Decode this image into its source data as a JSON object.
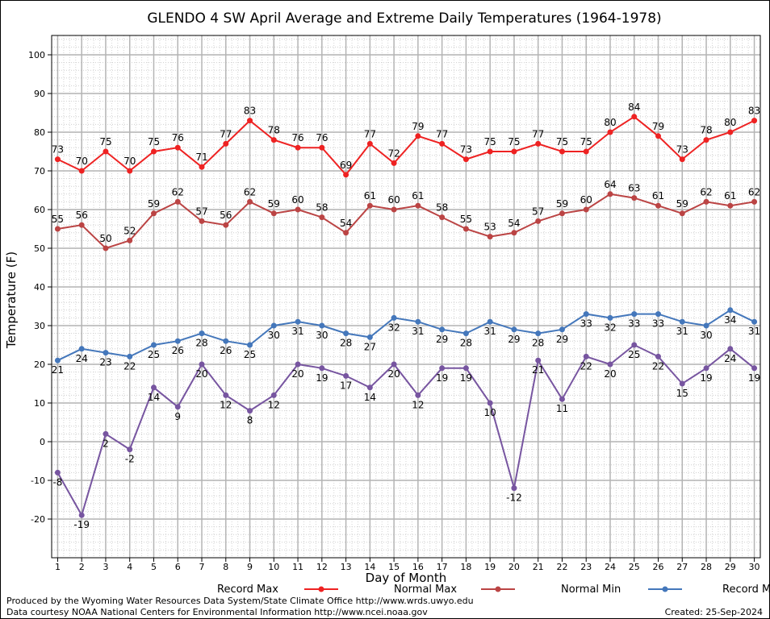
{
  "chart_data": {
    "type": "line",
    "title": "GLENDO 4 SW April Average and Extreme Daily Temperatures (1964-1978)",
    "xlabel": "Day of Month",
    "ylabel": "Temperature (F)",
    "ylim": [
      -30,
      105
    ],
    "yticks": [
      -20,
      -10,
      0,
      10,
      20,
      30,
      40,
      50,
      60,
      70,
      80,
      90,
      100
    ],
    "x": [
      1,
      2,
      3,
      4,
      5,
      6,
      7,
      8,
      9,
      10,
      11,
      12,
      13,
      14,
      15,
      16,
      17,
      18,
      19,
      20,
      21,
      22,
      23,
      24,
      25,
      26,
      27,
      28,
      29,
      30
    ],
    "grid": true,
    "legend_position": "bottom",
    "series": [
      {
        "name": "Record Max",
        "color": "#ee2222",
        "label_position": "above",
        "values": [
          73,
          70,
          75,
          70,
          75,
          76,
          71,
          77,
          83,
          78,
          76,
          76,
          69,
          77,
          72,
          79,
          77,
          73,
          75,
          75,
          77,
          75,
          75,
          80,
          84,
          79,
          73,
          78,
          80,
          83
        ]
      },
      {
        "name": "Normal Max",
        "color": "#bb4444",
        "label_position": "above",
        "values": [
          55,
          56,
          50,
          52,
          59,
          62,
          57,
          56,
          62,
          59,
          60,
          58,
          54,
          61,
          60,
          61,
          58,
          55,
          53,
          54,
          57,
          59,
          60,
          64,
          63,
          61,
          59,
          62,
          61,
          62
        ]
      },
      {
        "name": "Normal Min",
        "color": "#4477bb",
        "label_position": "below",
        "values": [
          21,
          24,
          23,
          22,
          25,
          26,
          28,
          26,
          25,
          30,
          31,
          30,
          28,
          27,
          32,
          31,
          29,
          28,
          31,
          29,
          28,
          29,
          33,
          32,
          33,
          33,
          31,
          30,
          34,
          31
        ]
      },
      {
        "name": "Record Min",
        "color": "#7755a0",
        "label_position": "below",
        "values": [
          -8,
          -19,
          2,
          -2,
          14,
          9,
          20,
          12,
          8,
          12,
          20,
          19,
          17,
          14,
          20,
          12,
          19,
          19,
          10,
          -12,
          21,
          11,
          22,
          20,
          25,
          22,
          15,
          19,
          24,
          19
        ]
      }
    ]
  },
  "footer": {
    "produced_by": "Produced by the Wyoming Water Resources Data System/State Climate Office http://www.wrds.uwyo.edu",
    "courtesy": "Data courtesy NOAA National Centers for Environmental Information http://www.ncei.noaa.gov",
    "created": "Created:  25-Sep-2024"
  }
}
